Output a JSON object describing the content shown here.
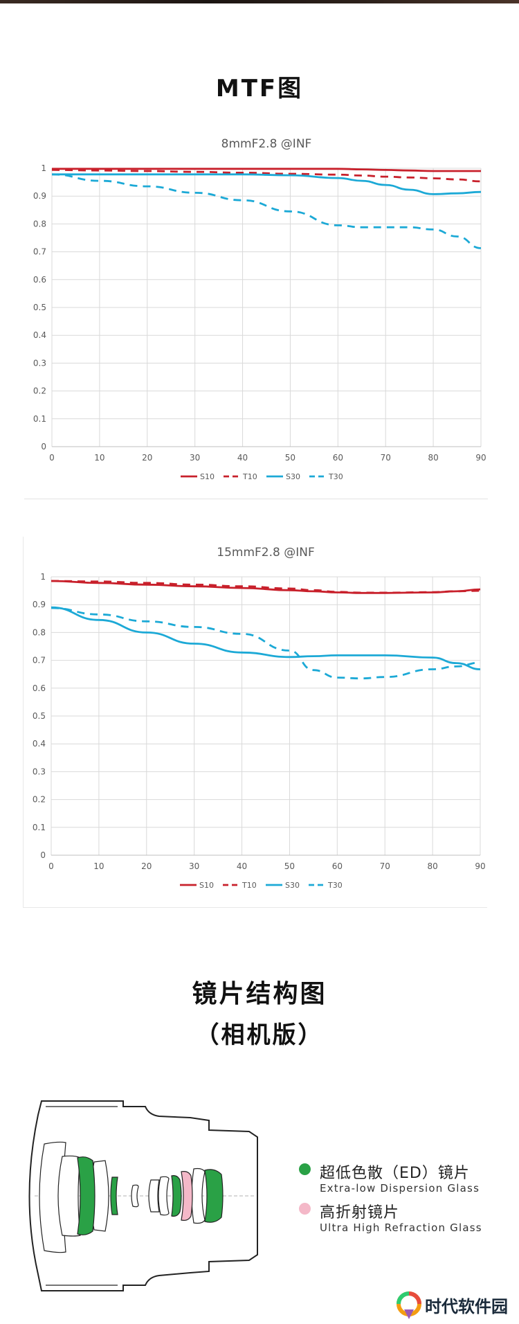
{
  "mtf_section": {
    "title": "MTF图"
  },
  "lens_section": {
    "title": "镜片结构图",
    "subtitle": "（相机版）",
    "legend": [
      {
        "cn": "超低色散（ED）镜片",
        "en": "Extra-low Dispersion Glass",
        "color": "#2aa146"
      },
      {
        "cn": "高折射镜片",
        "en": "Ultra High Refraction Glass",
        "color": "#f4b8c8"
      }
    ]
  },
  "watermark": {
    "text": "时代软件园"
  },
  "chart_data": [
    {
      "type": "line",
      "title": "8mmF2.8 @INF",
      "xlabel": "",
      "ylabel": "",
      "xlim": [
        0,
        90
      ],
      "ylim": [
        0,
        1
      ],
      "x_ticks": [
        0,
        10,
        20,
        30,
        40,
        50,
        60,
        70,
        80,
        90
      ],
      "y_ticks": [
        0,
        0.1,
        0.2,
        0.3,
        0.4,
        0.5,
        0.6,
        0.7,
        0.8,
        0.9,
        1
      ],
      "grid": true,
      "legend_position": "bottom",
      "x": [
        0,
        10,
        20,
        30,
        40,
        50,
        60,
        65,
        70,
        75,
        80,
        85,
        90
      ],
      "series": [
        {
          "name": "S10",
          "color": "#c8202b",
          "dash": false,
          "values": [
            0.998,
            0.998,
            0.998,
            0.998,
            0.998,
            0.998,
            0.998,
            0.996,
            0.994,
            0.992,
            0.99,
            0.99,
            0.99
          ]
        },
        {
          "name": "T10",
          "color": "#c8202b",
          "dash": true,
          "values": [
            0.994,
            0.992,
            0.99,
            0.987,
            0.984,
            0.98,
            0.977,
            0.974,
            0.97,
            0.967,
            0.964,
            0.96,
            0.953
          ]
        },
        {
          "name": "S30",
          "color": "#1ca9d6",
          "dash": false,
          "values": [
            0.978,
            0.978,
            0.978,
            0.978,
            0.978,
            0.975,
            0.965,
            0.955,
            0.94,
            0.923,
            0.907,
            0.91,
            0.915
          ]
        },
        {
          "name": "T30",
          "color": "#1ca9d6",
          "dash": true,
          "values": [
            0.978,
            0.955,
            0.935,
            0.912,
            0.885,
            0.845,
            0.795,
            0.788,
            0.788,
            0.788,
            0.78,
            0.755,
            0.713
          ]
        }
      ]
    },
    {
      "type": "line",
      "title": "15mmF2.8 @INF",
      "xlabel": "",
      "ylabel": "",
      "xlim": [
        0,
        90
      ],
      "ylim": [
        0,
        1
      ],
      "x_ticks": [
        0,
        10,
        20,
        30,
        40,
        50,
        60,
        70,
        80,
        90
      ],
      "y_ticks": [
        0,
        0.1,
        0.2,
        0.3,
        0.4,
        0.5,
        0.6,
        0.7,
        0.8,
        0.9,
        1
      ],
      "grid": true,
      "legend_position": "bottom",
      "x": [
        0,
        10,
        20,
        30,
        40,
        50,
        55,
        60,
        65,
        70,
        80,
        85,
        90
      ],
      "series": [
        {
          "name": "S10",
          "color": "#c8202b",
          "dash": false,
          "values": [
            0.985,
            0.978,
            0.972,
            0.966,
            0.96,
            0.952,
            0.948,
            0.944,
            0.942,
            0.942,
            0.944,
            0.948,
            0.955
          ]
        },
        {
          "name": "T10",
          "color": "#c8202b",
          "dash": true,
          "values": [
            0.985,
            0.983,
            0.978,
            0.972,
            0.966,
            0.958,
            0.952,
            0.946,
            0.943,
            0.943,
            0.945,
            0.948,
            0.95
          ]
        },
        {
          "name": "S30",
          "color": "#1ca9d6",
          "dash": false,
          "values": [
            0.89,
            0.845,
            0.8,
            0.76,
            0.728,
            0.712,
            0.715,
            0.718,
            0.718,
            0.718,
            0.71,
            0.69,
            0.668
          ]
        },
        {
          "name": "T30",
          "color": "#1ca9d6",
          "dash": true,
          "values": [
            0.888,
            0.865,
            0.84,
            0.82,
            0.795,
            0.735,
            0.665,
            0.638,
            0.635,
            0.64,
            0.668,
            0.678,
            0.692
          ]
        }
      ]
    }
  ]
}
